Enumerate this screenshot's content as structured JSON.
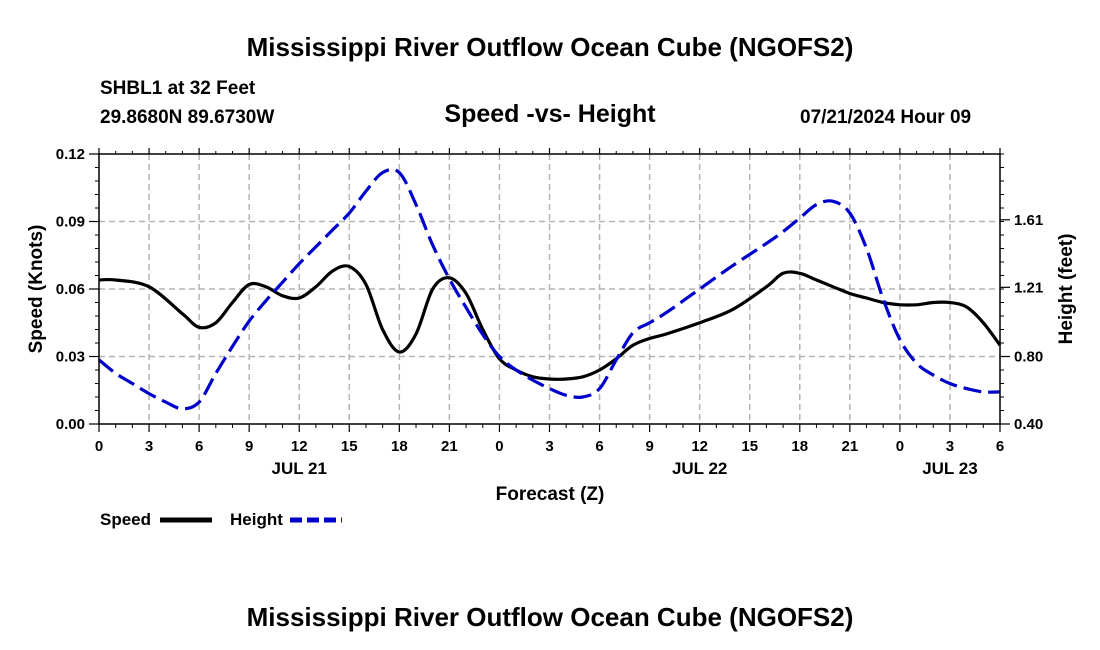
{
  "header": {
    "title": "Mississippi River Outflow Ocean Cube (NGOFS2)",
    "station": "SHBL1 at 32 Feet",
    "coords": "29.8680N  89.6730W",
    "datetime": "07/21/2024 Hour 09"
  },
  "footer": {
    "title": "Mississippi River Outflow Ocean Cube (NGOFS2)"
  },
  "colors": {
    "speed": "#000000",
    "height": "#0000cc",
    "grid": "#b3b3b3"
  },
  "chart_data": {
    "type": "line",
    "title": "Speed -vs- Height",
    "xlabel": "Forecast (Z)",
    "ylabel": "Speed (Knots)",
    "y2label": "Height (feet)",
    "xlim": [
      0,
      54
    ],
    "ylim": [
      0,
      0.12
    ],
    "y2lim": [
      0.4,
      2.0
    ],
    "x_ticks": [
      0,
      3,
      6,
      9,
      12,
      15,
      18,
      21,
      24,
      27,
      30,
      33,
      36,
      39,
      42,
      45,
      48,
      51,
      54
    ],
    "x_tick_labels": [
      "0",
      "3",
      "6",
      "9",
      "12",
      "15",
      "18",
      "21",
      "0",
      "3",
      "6",
      "9",
      "12",
      "15",
      "18",
      "21",
      "0",
      "3",
      "6"
    ],
    "y_ticks": [
      0,
      0.03,
      0.06,
      0.09,
      0.12
    ],
    "y_tick_labels": [
      "0.00",
      "0.03",
      "0.06",
      "0.09",
      "0.12"
    ],
    "y2_ticks": [
      0.4,
      0.8,
      1.21,
      1.61
    ],
    "y2_tick_labels": [
      "0.40",
      "0.80",
      "1.21",
      "1.61"
    ],
    "date_labels": [
      {
        "x": 12,
        "label": "JUL 21"
      },
      {
        "x": 36,
        "label": "JUL 22"
      },
      {
        "x": 51,
        "label": "JUL 23"
      }
    ],
    "grid": true,
    "legend_position": "bottom-left",
    "series": [
      {
        "name": "Speed",
        "axis": "left",
        "color": "#000000",
        "dash": "solid",
        "x": [
          0,
          1,
          3,
          5,
          6,
          7,
          8,
          9,
          10,
          11,
          12,
          13,
          14,
          15,
          16,
          17,
          18,
          19,
          20,
          21,
          22,
          23,
          24,
          25,
          26,
          27,
          28,
          29,
          30,
          31,
          32,
          33,
          34,
          36,
          38,
          40,
          41,
          42,
          43,
          44,
          45,
          46,
          47,
          48,
          49,
          50,
          51,
          52,
          53,
          54
        ],
        "values": [
          0.064,
          0.064,
          0.061,
          0.049,
          0.043,
          0.045,
          0.054,
          0.062,
          0.061,
          0.057,
          0.056,
          0.061,
          0.068,
          0.07,
          0.062,
          0.042,
          0.032,
          0.04,
          0.06,
          0.065,
          0.058,
          0.042,
          0.029,
          0.024,
          0.021,
          0.02,
          0.02,
          0.021,
          0.024,
          0.029,
          0.035,
          0.038,
          0.04,
          0.045,
          0.051,
          0.061,
          0.067,
          0.067,
          0.064,
          0.061,
          0.058,
          0.056,
          0.054,
          0.053,
          0.053,
          0.054,
          0.054,
          0.052,
          0.045,
          0.035
        ]
      },
      {
        "name": "Height",
        "axis": "right",
        "color": "#0000cc",
        "dash": "dashed",
        "x": [
          0,
          1,
          2,
          3,
          4,
          5,
          6,
          7,
          8,
          9,
          10,
          11,
          12,
          13,
          14,
          15,
          16,
          17,
          18,
          19,
          20,
          21,
          22,
          23,
          24,
          25,
          26,
          27,
          28,
          29,
          30,
          31,
          32,
          33,
          34,
          36,
          38,
          40,
          41,
          42,
          43,
          44,
          45,
          46,
          47,
          48,
          49,
          50,
          51,
          52,
          53,
          54
        ],
        "values": [
          0.78,
          0.7,
          0.64,
          0.58,
          0.53,
          0.49,
          0.53,
          0.7,
          0.86,
          1.01,
          1.13,
          1.24,
          1.35,
          1.45,
          1.55,
          1.65,
          1.78,
          1.89,
          1.89,
          1.7,
          1.46,
          1.26,
          1.09,
          0.93,
          0.8,
          0.72,
          0.66,
          0.61,
          0.57,
          0.56,
          0.61,
          0.78,
          0.94,
          1.0,
          1.06,
          1.2,
          1.34,
          1.47,
          1.54,
          1.62,
          1.7,
          1.72,
          1.65,
          1.44,
          1.14,
          0.9,
          0.76,
          0.69,
          0.64,
          0.61,
          0.59,
          0.59
        ]
      }
    ]
  }
}
